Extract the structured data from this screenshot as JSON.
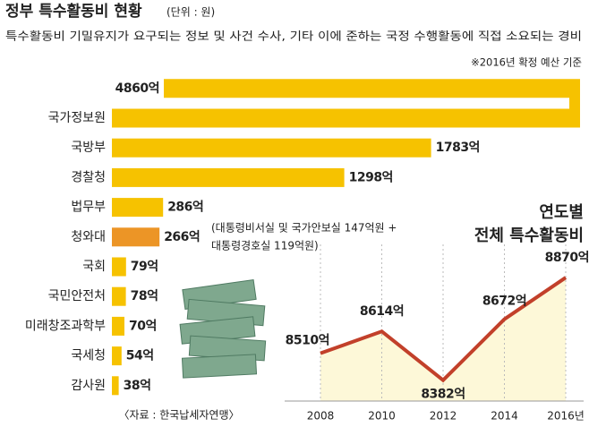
{
  "header": {
    "title": "정부 특수활동비 현황",
    "unit": "(단위 : 원)",
    "subtitle": "특수활동비 기밀유지가 요구되는 정보 및 사건 수사, 기타 이에 준하는 국정 수행활동에 직접 소요되는 경비",
    "note": "※2016년 확정 예산 기준",
    "source": "〈자료 : 한국납세자연맹〉"
  },
  "chart_data": [
    {
      "type": "hbar",
      "categories": [
        "국가정보원",
        "국방부",
        "경찰청",
        "법무부",
        "청와대",
        "국회",
        "국민안전처",
        "미래창조과학부",
        "국세청",
        "감사원"
      ],
      "values": [
        4860,
        1783,
        1298,
        286,
        266,
        79,
        78,
        70,
        54,
        38
      ],
      "value_labels": [
        "4860억",
        "1783억",
        "1298억",
        "286억",
        "266억",
        "79억",
        "78억",
        "70억",
        "54억",
        "38억"
      ],
      "colors": [
        "#f6c200",
        "#f6c200",
        "#f6c200",
        "#f6c200",
        "#ec9526",
        "#f6c200",
        "#f6c200",
        "#f6c200",
        "#f6c200",
        "#f6c200"
      ],
      "annotation": [
        "(대통령비서실 및 국가안보실 147억원 +",
        "대통령경호실 119억원)"
      ]
    },
    {
      "type": "line",
      "title": [
        "연도별",
        "전체 특수활동비"
      ],
      "unit": "(단위 : 원)",
      "x": [
        2008,
        2010,
        2012,
        2014,
        2016
      ],
      "series": [
        {
          "color": "#c2402a",
          "values": [
            8510,
            8614,
            8382,
            8672,
            8870
          ],
          "value_labels": [
            "8510억",
            "8614억",
            "8382억",
            "8672억",
            "8870억"
          ]
        }
      ],
      "xlim": [
        2008,
        2016
      ],
      "xticks": [
        2008,
        2010,
        2012,
        2014,
        {
          "value": 2016,
          "label": "2016년"
        }
      ],
      "ylim": [
        8300,
        8900
      ],
      "area_color": "#fdf8d8"
    }
  ]
}
